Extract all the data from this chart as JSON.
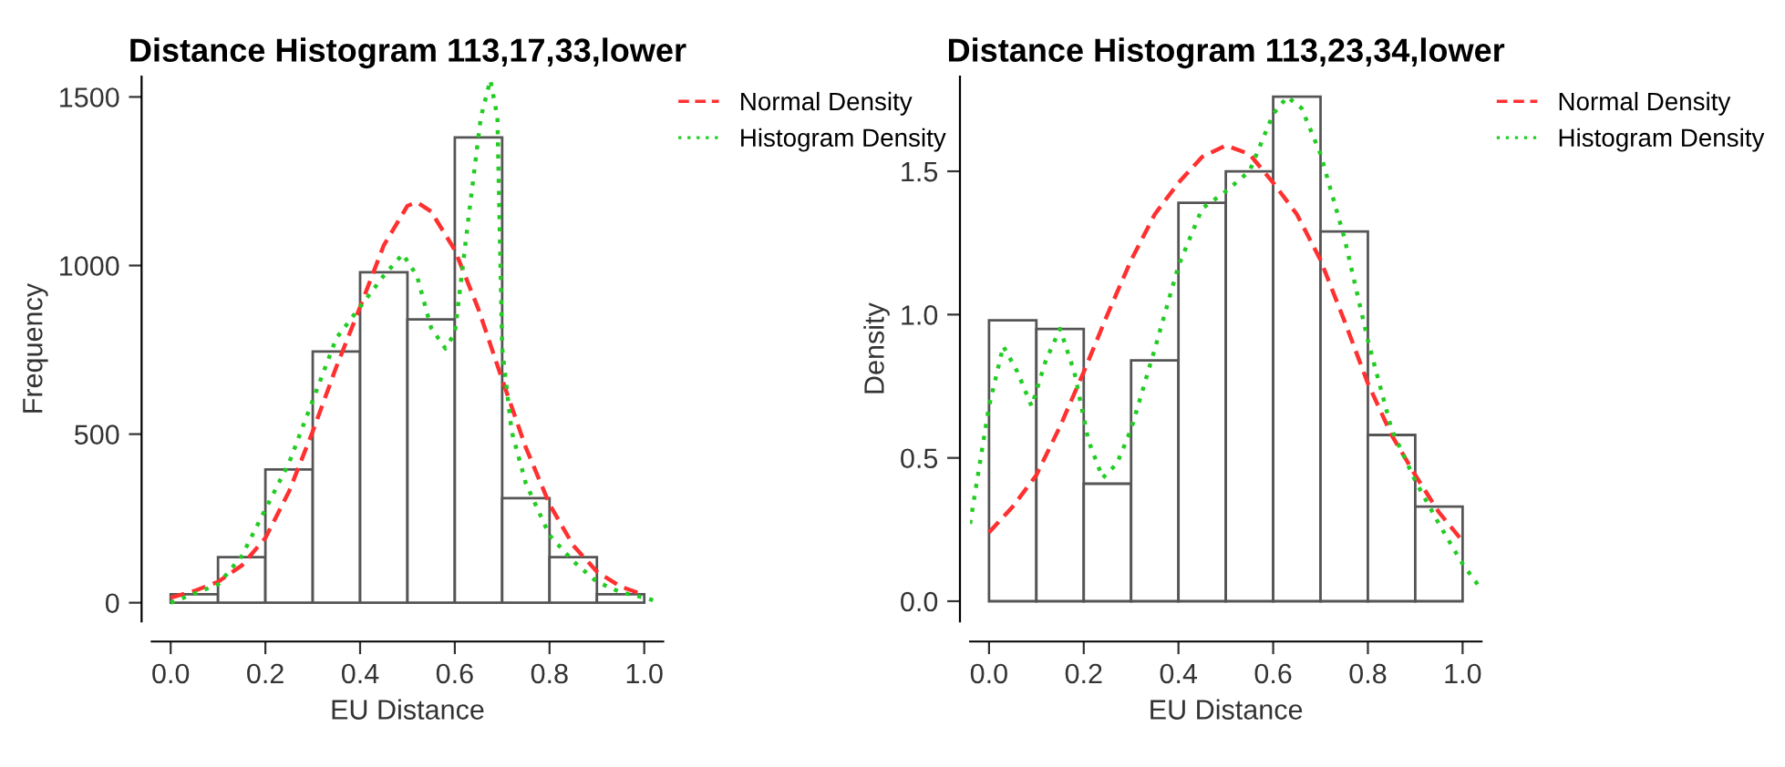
{
  "chart_data": [
    {
      "type": "histogram",
      "title": "Distance Histogram 113,17,33,lower",
      "xlabel": "EU Distance",
      "ylabel": "Frequency",
      "bins": [
        0.0,
        0.1,
        0.2,
        0.3,
        0.4,
        0.5,
        0.6,
        0.7,
        0.8,
        0.9,
        1.0
      ],
      "values": [
        25,
        135,
        395,
        745,
        980,
        840,
        1380,
        310,
        135,
        25
      ],
      "color": "#ffffff",
      "series": [
        {
          "type": "line",
          "name": "Normal Density",
          "color": "#ff3030",
          "line_style": "dashed",
          "x": [
            0.0,
            0.05,
            0.1,
            0.15,
            0.2,
            0.25,
            0.3,
            0.35,
            0.4,
            0.45,
            0.5,
            0.52,
            0.55,
            0.6,
            0.65,
            0.7,
            0.75,
            0.8,
            0.85,
            0.9,
            0.95,
            1.0
          ],
          "values": [
            15,
            35,
            62,
            110,
            192,
            330,
            508,
            700,
            877,
            1060,
            1177,
            1188,
            1160,
            1046,
            870,
            662,
            460,
            292,
            170,
            92,
            48,
            23
          ]
        },
        {
          "type": "line",
          "name": "Histogram Density",
          "color": "#22cc22",
          "line_style": "dotted",
          "x": [
            0.0,
            0.1,
            0.15,
            0.2,
            0.25,
            0.3,
            0.35,
            0.4,
            0.45,
            0.49,
            0.52,
            0.55,
            0.58,
            0.6,
            0.63,
            0.655,
            0.675,
            0.69,
            0.7,
            0.72,
            0.75,
            0.8,
            0.85,
            0.9,
            0.95,
            1.0,
            1.03
          ],
          "values": [
            0,
            54,
            138,
            277,
            415,
            600,
            785,
            877,
            970,
            1034,
            970,
            815,
            754,
            800,
            1154,
            1440,
            1550,
            1440,
            754,
            508,
            354,
            200,
            123,
            62,
            31,
            15,
            3
          ]
        }
      ],
      "xlim": [
        -0.04,
        1.04
      ],
      "ylim": [
        -55,
        1560
      ],
      "xticks": [
        {
          "value": 0.0,
          "label": "0.0"
        },
        {
          "value": 0.2,
          "label": "0.2"
        },
        {
          "value": 0.4,
          "label": "0.4"
        },
        {
          "value": 0.6,
          "label": "0.6"
        },
        {
          "value": 0.8,
          "label": "0.8"
        },
        {
          "value": 1.0,
          "label": "1.0"
        }
      ],
      "yticks": [
        0,
        500,
        1000,
        1500
      ],
      "grid": false,
      "legend": "top right",
      "marker": "none"
    },
    {
      "type": "histogram",
      "title": "Distance Histogram 113,23,34,lower",
      "xlabel": "EU Distance",
      "ylabel": "Density",
      "bins": [
        0.0,
        0.1,
        0.2,
        0.3,
        0.4,
        0.5,
        0.6,
        0.7,
        0.8,
        0.9,
        1.0
      ],
      "values": [
        0.98,
        0.95,
        0.41,
        0.84,
        1.39,
        1.5,
        1.76,
        1.29,
        0.58,
        0.33
      ],
      "color": "#ffffff",
      "series": [
        {
          "type": "line",
          "name": "Normal Density",
          "color": "#ff3030",
          "line_style": "dashed",
          "x": [
            0.0,
            0.05,
            0.1,
            0.15,
            0.2,
            0.25,
            0.3,
            0.35,
            0.4,
            0.45,
            0.5,
            0.55,
            0.6,
            0.65,
            0.7,
            0.75,
            0.8,
            0.85,
            0.9,
            0.95,
            1.0
          ],
          "values": [
            0.24,
            0.33,
            0.44,
            0.61,
            0.8,
            1.0,
            1.19,
            1.35,
            1.46,
            1.55,
            1.59,
            1.56,
            1.46,
            1.35,
            1.19,
            0.98,
            0.76,
            0.58,
            0.44,
            0.31,
            0.21
          ]
        },
        {
          "type": "line",
          "name": "Histogram Density",
          "color": "#22cc22",
          "line_style": "dotted",
          "x": [
            -0.04,
            0.0,
            0.03,
            0.06,
            0.09,
            0.12,
            0.15,
            0.18,
            0.21,
            0.24,
            0.27,
            0.3,
            0.35,
            0.4,
            0.45,
            0.5,
            0.55,
            0.6,
            0.63,
            0.66,
            0.7,
            0.75,
            0.8,
            0.85,
            0.9,
            0.95,
            1.0,
            1.04
          ],
          "values": [
            0.27,
            0.68,
            0.89,
            0.8,
            0.68,
            0.84,
            0.95,
            0.8,
            0.56,
            0.43,
            0.48,
            0.6,
            0.88,
            1.17,
            1.37,
            1.43,
            1.5,
            1.7,
            1.76,
            1.72,
            1.56,
            1.27,
            0.91,
            0.6,
            0.42,
            0.27,
            0.13,
            0.04
          ]
        }
      ],
      "xlim": [
        -0.04,
        1.04
      ],
      "ylim": [
        -0.07,
        1.83
      ],
      "xticks": [
        {
          "value": 0.0,
          "label": "0.0"
        },
        {
          "value": 0.2,
          "label": "0.2"
        },
        {
          "value": 0.4,
          "label": "0.4"
        },
        {
          "value": 0.6,
          "label": "0.6"
        },
        {
          "value": 0.8,
          "label": "0.8"
        },
        {
          "value": 1.0,
          "label": "1.0"
        }
      ],
      "yticks": [
        {
          "value": 0.0,
          "label": "0.0"
        },
        {
          "value": 0.5,
          "label": "0.5"
        },
        {
          "value": 1.0,
          "label": "1.0"
        },
        {
          "value": 1.5,
          "label": "1.5"
        }
      ],
      "grid": false,
      "legend": "top right",
      "marker": "none"
    }
  ]
}
